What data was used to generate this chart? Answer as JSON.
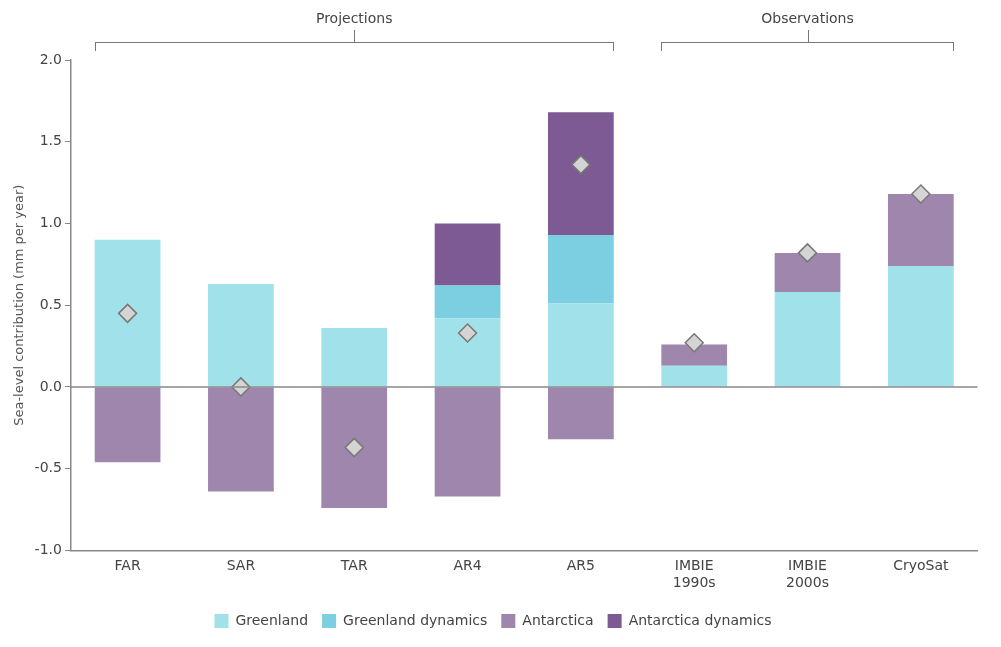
{
  "chart_data": {
    "type": "bar",
    "stacked": true,
    "ylabel": "Sea-level contribution (mm per year)",
    "categories": [
      "FAR",
      "SAR",
      "TAR",
      "AR4",
      "AR5",
      "IMBIE 1990s",
      "IMBIE 2000s",
      "CryoSat"
    ],
    "series": [
      {
        "name": "Greenland",
        "color": "#a0e1ea",
        "values": [
          0.9,
          0.63,
          0.36,
          0.42,
          0.51,
          0.13,
          0.58,
          0.74
        ]
      },
      {
        "name": "Greenland dynamics",
        "color": "#7ccfe0",
        "values": [
          null,
          null,
          null,
          0.2,
          0.42,
          null,
          null,
          null
        ]
      },
      {
        "name": "Antarctica",
        "color": "#9e86ad",
        "values": [
          -0.46,
          -0.64,
          -0.74,
          -0.67,
          -0.32,
          0.13,
          0.24,
          0.44
        ]
      },
      {
        "name": "Antarctica dynamics",
        "color": "#7d5a93",
        "values": [
          null,
          null,
          null,
          0.38,
          0.75,
          null,
          null,
          null
        ]
      },
      {
        "type": "scatter",
        "color": "#d4d4d4",
        "marker": "diamond",
        "values": [
          0.45,
          0.0,
          -0.37,
          0.33,
          1.36,
          0.27,
          0.82,
          1.18
        ]
      }
    ],
    "ylim": [
      -1,
      2
    ],
    "yticks": [
      {
        "value": -1,
        "label": "-1.0"
      },
      {
        "value": -0.5,
        "label": "-0.5"
      },
      {
        "value": 0,
        "label": "0.0"
      },
      {
        "value": 0.5,
        "label": "0.5"
      },
      {
        "value": 1,
        "label": "1.0"
      },
      {
        "value": 1.5,
        "label": "1.5"
      },
      {
        "value": 2,
        "label": "2.0"
      }
    ],
    "grid": false,
    "ref_lines": [
      {
        "axis": "y",
        "value": 0,
        "color": "#888888"
      }
    ],
    "annotations": [
      "Projections",
      "Observations"
    ],
    "legend": "bottom"
  }
}
